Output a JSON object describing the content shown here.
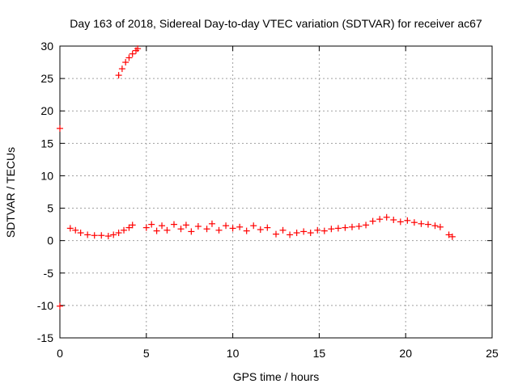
{
  "chart_data": {
    "type": "scatter",
    "title": "Day 163 of 2018, Sidereal Day-to-day VTEC variation (SDTVAR) for receiver ac67",
    "xlabel": "GPS time / hours",
    "ylabel": "SDTVAR / TECUs",
    "xlim": [
      0,
      25
    ],
    "ylim": [
      -15,
      30
    ],
    "xticks": [
      "0",
      "5",
      "10",
      "15",
      "20",
      "25"
    ],
    "yticks": [
      "-15",
      "-10",
      "-5",
      "0",
      "5",
      "10",
      "15",
      "20",
      "25",
      "30"
    ],
    "grid": true,
    "marker": "+",
    "color": "#ff0000",
    "series": [
      {
        "name": "SDTVAR",
        "x": [
          0.0,
          0.0,
          0.6,
          0.9,
          1.2,
          1.6,
          2.0,
          2.4,
          2.8,
          3.1,
          3.4,
          3.7,
          4.0,
          4.2,
          3.4,
          3.6,
          3.8,
          4.0,
          4.2,
          4.4,
          4.5,
          5.0,
          5.3,
          5.6,
          5.9,
          6.2,
          6.6,
          7.0,
          7.3,
          7.6,
          8.0,
          8.5,
          8.8,
          9.2,
          9.6,
          10.0,
          10.4,
          10.8,
          11.2,
          11.6,
          12.0,
          12.5,
          12.9,
          13.3,
          13.7,
          14.1,
          14.5,
          14.9,
          15.3,
          15.7,
          16.1,
          16.5,
          16.9,
          17.3,
          17.7,
          18.1,
          18.5,
          18.9,
          19.3,
          19.7,
          20.1,
          20.5,
          20.9,
          21.3,
          21.7,
          22.0,
          22.5,
          22.7
        ],
        "y": [
          17.3,
          -10.1,
          1.9,
          1.6,
          1.2,
          0.9,
          0.8,
          0.8,
          0.7,
          0.9,
          1.2,
          1.6,
          2.0,
          2.4,
          25.5,
          26.5,
          27.5,
          28.2,
          28.8,
          29.3,
          29.6,
          2.0,
          2.5,
          1.5,
          2.3,
          1.6,
          2.5,
          1.8,
          2.4,
          1.4,
          2.2,
          1.8,
          2.6,
          1.6,
          2.3,
          1.9,
          2.1,
          1.5,
          2.3,
          1.7,
          2.0,
          1.0,
          1.6,
          0.9,
          1.2,
          1.4,
          1.2,
          1.6,
          1.5,
          1.8,
          1.9,
          2.0,
          2.1,
          2.2,
          2.4,
          3.0,
          3.3,
          3.6,
          3.2,
          2.9,
          3.1,
          2.8,
          2.6,
          2.5,
          2.3,
          2.1,
          0.9,
          0.6
        ]
      }
    ]
  }
}
